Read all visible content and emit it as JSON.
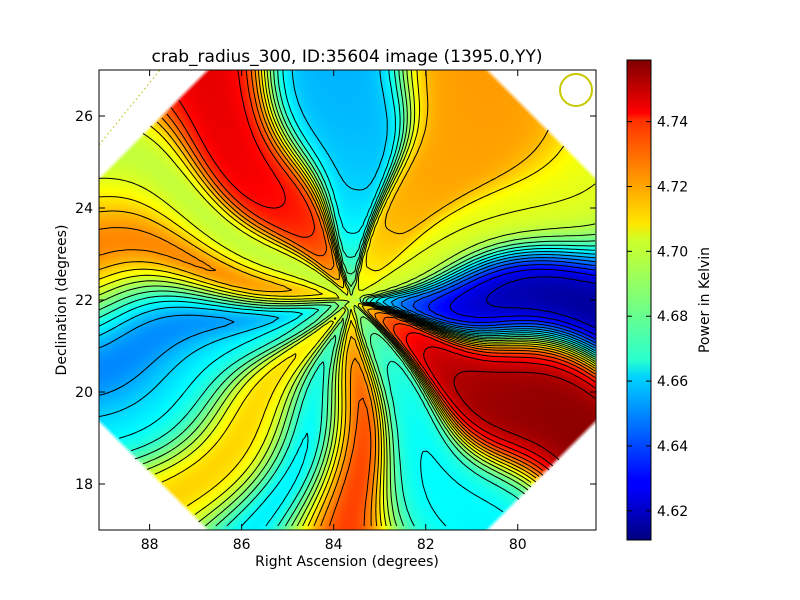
{
  "chart_data": {
    "type": "heatmap",
    "title": "crab_radius_300, ID:35604 image (1395.0,YY)",
    "xlabel": "Right Ascension (degrees)",
    "ylabel": "Declination (degrees)",
    "xlim": [
      89.1,
      78.3
    ],
    "ylim": [
      17.0,
      27.0
    ],
    "x_ticks": [
      88,
      86,
      84,
      82,
      80
    ],
    "x_tick_labels": [
      "88",
      "86",
      "84",
      "82",
      "80"
    ],
    "y_ticks": [
      18,
      20,
      22,
      24,
      26
    ],
    "y_tick_labels": [
      "18",
      "20",
      "22",
      "24",
      "26"
    ],
    "colorbar": {
      "label": "Power in Kelvin",
      "range": [
        4.611,
        4.759
      ],
      "ticks": [
        4.62,
        4.64,
        4.66,
        4.68,
        4.7,
        4.72,
        4.74
      ],
      "tick_labels": [
        "4.62",
        "4.64",
        "4.66",
        "4.68",
        "4.70",
        "4.72",
        "4.74"
      ],
      "colormap": "jet"
    },
    "center": [
      83.6,
      22.0
    ],
    "footprint": "octagon",
    "contours": "black",
    "beam_marker": {
      "shape": "circle",
      "color": "#c8c800",
      "position": "top-right"
    },
    "lobes": [
      {
        "angle_deg": 0,
        "value": 4.612
      },
      {
        "angle_deg": 25,
        "value": 4.7
      },
      {
        "angle_deg": 55,
        "value": 4.718
      },
      {
        "angle_deg": 95,
        "value": 4.655
      },
      {
        "angle_deg": 125,
        "value": 4.745
      },
      {
        "angle_deg": 155,
        "value": 4.69
      },
      {
        "angle_deg": 172,
        "value": 4.752
      },
      {
        "angle_deg": 185,
        "value": 4.628
      },
      {
        "angle_deg": 205,
        "value": 4.665
      },
      {
        "angle_deg": 230,
        "value": 4.715
      },
      {
        "angle_deg": 250,
        "value": 4.65
      },
      {
        "angle_deg": 268,
        "value": 4.74
      },
      {
        "angle_deg": 295,
        "value": 4.665
      },
      {
        "angle_deg": 330,
        "value": 4.758
      }
    ],
    "core_value": 4.695
  }
}
